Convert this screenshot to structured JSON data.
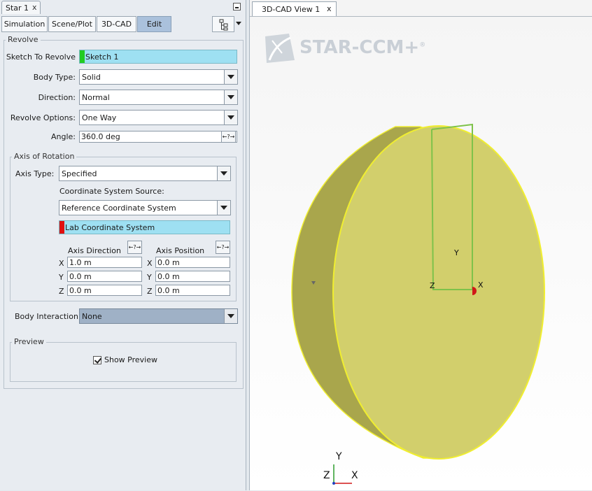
{
  "left_panel": {
    "window_tab": {
      "title": "Star 1",
      "close": "x"
    },
    "sub_tabs": [
      {
        "label": "Simulation"
      },
      {
        "label": "Scene/Plot"
      },
      {
        "label": "3D-CAD"
      },
      {
        "label": "Edit"
      }
    ],
    "revolve": {
      "group_title": "Revolve",
      "sketch": {
        "label": "Sketch To Revolve",
        "value": "Sketch 1",
        "swatch_color": "#22cc22"
      },
      "body_type": {
        "label": "Body Type:",
        "value": "Solid"
      },
      "direction": {
        "label": "Direction:",
        "value": "Normal"
      },
      "revolve_options": {
        "label": "Revolve Options:",
        "value": "One Way"
      },
      "angle": {
        "label": "Angle:",
        "value": "360.0 deg",
        "button": "←?→"
      }
    },
    "axis_of_rotation": {
      "group_title": "Axis of Rotation",
      "axis_type": {
        "label": "Axis Type:",
        "value": "Specified"
      },
      "coord_source_label": "Coordinate System Source:",
      "coord_source_value": "Reference Coordinate System",
      "coord_system": {
        "value": "Lab Coordinate System",
        "swatch_color": "#e01010"
      },
      "axis_direction": {
        "label": "Axis Direction",
        "button": "←?→",
        "x_label": "X",
        "x": "1.0 m",
        "y_label": "Y",
        "y": "0.0 m",
        "z_label": "Z",
        "z": "0.0 m"
      },
      "axis_position": {
        "label": "Axis Position",
        "button": "←?→",
        "x_label": "X",
        "x": "0.0 m",
        "y_label": "Y",
        "y": "0.0 m",
        "z_label": "Z",
        "z": "0.0 m"
      }
    },
    "body_interaction": {
      "label": "Body Interaction",
      "value": "None"
    },
    "preview": {
      "group_title": "Preview",
      "show_preview_label": "Show Preview",
      "checked": true
    }
  },
  "view": {
    "tab_title": "3D-CAD View 1",
    "tab_close": "x",
    "logo_text": "STAR-CCM+",
    "logo_reg": "®",
    "sketch_labels": {
      "y": "Y",
      "z": "Z",
      "x": "X"
    },
    "triad": {
      "y": "Y",
      "z": "Z",
      "x": "X"
    },
    "colors": {
      "body": "#d2cf6c",
      "body_side": "#a9a64c",
      "edge": "#f0ee30",
      "sketch": "#7ec24a",
      "origin": "#d01818"
    }
  }
}
